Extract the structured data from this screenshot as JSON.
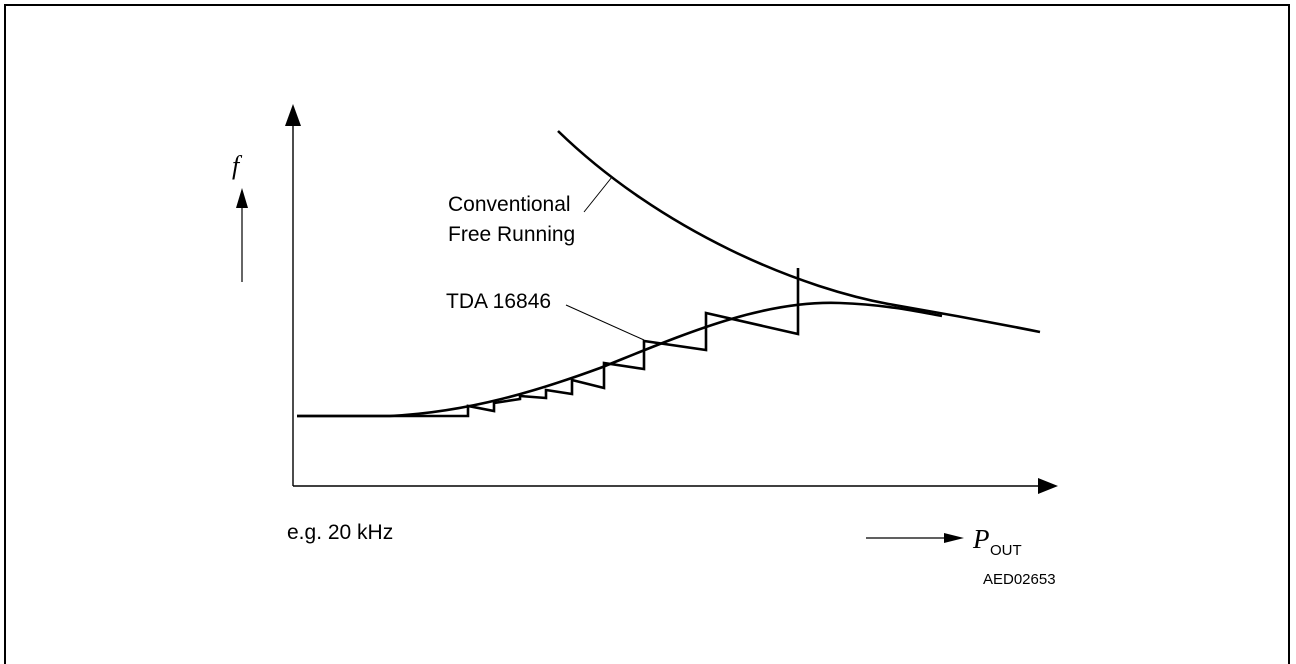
{
  "labels": {
    "y_axis_symbol": "f",
    "x_axis_symbol": "P",
    "x_axis_subscript": "OUT",
    "curve_conventional_line1": "Conventional",
    "curve_conventional_line2": "Free Running",
    "curve_tda": "TDA 16846",
    "baseline_note": "e.g. 20 kHz",
    "figure_code": "AED02653"
  }
}
